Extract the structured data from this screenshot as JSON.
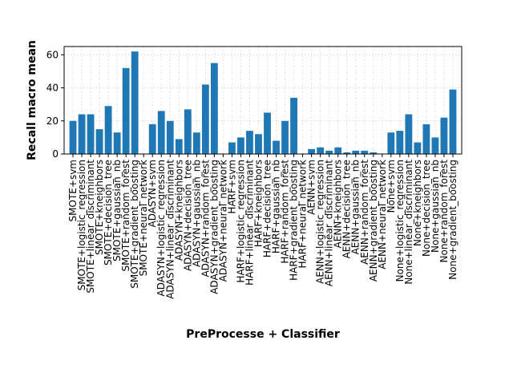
{
  "chart_data": {
    "type": "bar",
    "xlabel": "PreProcesse + Classifier",
    "ylabel": "Recall macro mean",
    "ylim": [
      0,
      65
    ],
    "yticks": [
      0,
      20,
      40,
      60
    ],
    "grid": true,
    "bar_color": "#1f77b4",
    "categories": [
      "SMOTE+svm",
      "SMOTE+logistic_regression",
      "SMOTE+linear_discriminant",
      "SMOTE+kneighbors",
      "SMOTE+decision_tree",
      "SMOTE+gaussian_nb",
      "SMOTE+random_forest",
      "SMOTE+gradient_boosting",
      "SMOTE+neural_network",
      "ADASYN+svm",
      "ADASYN+logistic_regression",
      "ADASYN+linear_discriminant",
      "ADASYN+kneighbors",
      "ADASYN+decision_tree",
      "ADASYN+gaussian_nb",
      "ADASYN+random_forest",
      "ADASYN+gradient_boosting",
      "ADASYN+neural_network",
      "HARF+svm",
      "HARF+logistic_regression",
      "HARF+linear_discriminant",
      "HARF+kneighbors",
      "HARF+decision_tree",
      "HARF+gaussian_nb",
      "HARF+random_forest",
      "HARF+gradient_boosting",
      "HARF+neural_network",
      "AENN+svm",
      "AENN+logistic_regression",
      "AENN+linear_discriminant",
      "AENN+kneighbors",
      "AENN+decision_tree",
      "AENN+gaussian_nb",
      "AENN+random_forest",
      "AENN+gradient_boosting",
      "AENN+neural_network",
      "None+svm",
      "None+logistic_regression",
      "None+linear_discriminant",
      "None+kneighbors",
      "None+decision_tree",
      "None+gaussian_nb",
      "None+random_forest",
      "None+gradient_boosting"
    ],
    "values": [
      20,
      24,
      24,
      15,
      29,
      13,
      52,
      62,
      0,
      18,
      26,
      20,
      9,
      27,
      13,
      42,
      55,
      0,
      7,
      10,
      14,
      12,
      25,
      8,
      20,
      34,
      0,
      3,
      4,
      2,
      4,
      1,
      2,
      2,
      1,
      0,
      13,
      14,
      24,
      7,
      18,
      10,
      22,
      39
    ]
  }
}
